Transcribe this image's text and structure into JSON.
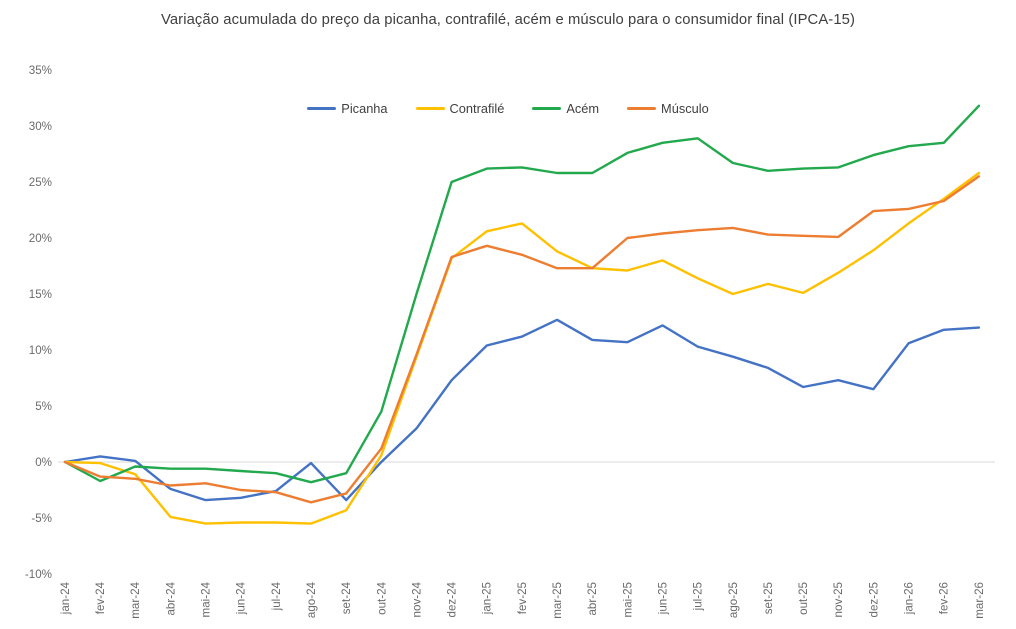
{
  "title": "Variação acumulada do preço da picanha, contrafilé, acém e músculo para o consumidor final (IPCA-15)",
  "colors": {
    "picanha": "#4472C4",
    "contrafile": "#FFC000",
    "acem": "#22A94D",
    "musculo": "#ED7D31",
    "zero_line": "#D9D9D9",
    "axis_text": "#6B6B6B",
    "title_text": "#3F3F3F"
  },
  "legend": [
    {
      "label": "Picanha",
      "color": "#4472C4"
    },
    {
      "label": "Contrafilé",
      "color": "#FFC000"
    },
    {
      "label": "Acém",
      "color": "#22A94D"
    },
    {
      "label": "Músculo",
      "color": "#ED7D31"
    }
  ],
  "chart_data": {
    "type": "line",
    "title": "Variação acumulada do preço da picanha, contrafilé, acém e músculo para o consumidor final (IPCA-15)",
    "categories": [
      "jan-24",
      "fev-24",
      "mar-24",
      "abr-24",
      "mai-24",
      "jun-24",
      "jul-24",
      "ago-24",
      "set-24",
      "out-24",
      "nov-24",
      "dez-24",
      "jan-25",
      "fev-25",
      "mar-25",
      "abr-25",
      "mai-25",
      "jun-25",
      "jul-25",
      "ago-25",
      "set-25",
      "out-25",
      "nov-25",
      "dez-25",
      "jan-26",
      "fev-26",
      "mar-26"
    ],
    "series": [
      {
        "name": "Picanha",
        "color": "#4472C4",
        "values": [
          0,
          0.5,
          0.1,
          -2.4,
          -3.4,
          -3.2,
          -2.6,
          -0.1,
          -3.4,
          0.0,
          3.0,
          7.3,
          10.4,
          11.2,
          12.7,
          10.9,
          10.7,
          12.2,
          10.3,
          9.4,
          8.4,
          6.7,
          7.3,
          6.5,
          10.6,
          11.8,
          12.0
        ]
      },
      {
        "name": "Contrafilé",
        "color": "#FFC000",
        "values": [
          0,
          -0.1,
          -1.1,
          -4.9,
          -5.5,
          -5.4,
          -5.4,
          -5.5,
          -4.3,
          0.6,
          9.4,
          18.2,
          20.6,
          21.3,
          18.8,
          17.3,
          17.1,
          18.0,
          16.4,
          15.0,
          15.9,
          15.1,
          16.9,
          18.9,
          21.3,
          23.5,
          25.8
        ]
      },
      {
        "name": "Acém",
        "color": "#22A94D",
        "values": [
          0,
          -1.7,
          -0.4,
          -0.6,
          -0.6,
          -0.8,
          -1.0,
          -1.8,
          -1.0,
          4.5,
          15.0,
          25.0,
          26.2,
          26.3,
          25.8,
          25.8,
          27.6,
          28.5,
          28.9,
          26.7,
          26.0,
          26.2,
          26.3,
          27.4,
          28.2,
          28.5,
          31.8
        ]
      },
      {
        "name": "Músculo",
        "color": "#ED7D31",
        "values": [
          0,
          -1.3,
          -1.5,
          -2.1,
          -1.9,
          -2.5,
          -2.7,
          -3.6,
          -2.8,
          1.2,
          9.6,
          18.3,
          19.3,
          18.5,
          17.3,
          17.3,
          20.0,
          20.4,
          20.7,
          20.9,
          20.3,
          20.2,
          20.1,
          22.4,
          22.6,
          23.3,
          25.5
        ]
      }
    ],
    "ylim": [
      -10,
      35
    ],
    "ytick_step": 5,
    "ytick_suffix": "%",
    "yticks": [
      35,
      30,
      25,
      20,
      15,
      10,
      5,
      0,
      -5,
      -10
    ],
    "grid": "zero-line-only",
    "legend_position": "top-center"
  }
}
